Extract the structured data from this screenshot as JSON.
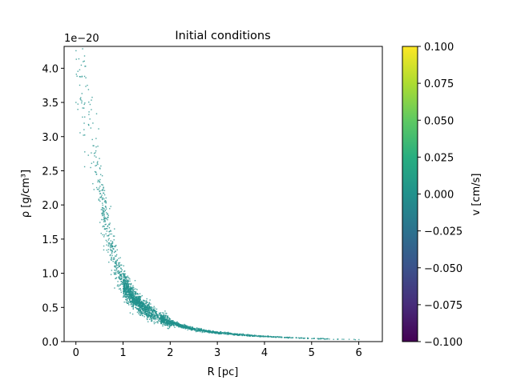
{
  "chart_data": {
    "type": "scatter",
    "title": "Initial conditions",
    "xlabel": "R  [pc]",
    "ylabel": "ρ [g/cm³]",
    "y_offset_label": "1e−20",
    "xlim": [
      -0.25,
      6.5
    ],
    "ylim": [
      0.0,
      4.32
    ],
    "y_scale_exponent": -20,
    "xticks": [
      0,
      1,
      2,
      3,
      4,
      5,
      6
    ],
    "xtick_labels": [
      "0",
      "1",
      "2",
      "3",
      "4",
      "5",
      "6"
    ],
    "yticks": [
      0.0,
      0.5,
      1.0,
      1.5,
      2.0,
      2.5,
      3.0,
      3.5,
      4.0
    ],
    "ytick_labels": [
      "0.0",
      "0.5",
      "1.0",
      "1.5",
      "2.0",
      "2.5",
      "3.0",
      "3.5",
      "4.0"
    ],
    "point_color": "#21918c",
    "series": [
      {
        "name": "particles",
        "description": "density decreasing with radius, ~0 velocity",
        "curve_samples": {
          "x": [
            0.02,
            0.2,
            0.35,
            0.5,
            0.65,
            0.8,
            1.0,
            1.2,
            1.4,
            1.6,
            1.8,
            2.0,
            2.5,
            3.0,
            3.5,
            4.0,
            4.5,
            5.0,
            5.5,
            6.0,
            6.2
          ],
          "y": [
            4.1,
            3.65,
            2.95,
            2.25,
            1.7,
            1.25,
            0.85,
            0.65,
            0.52,
            0.42,
            0.34,
            0.28,
            0.18,
            0.13,
            0.1,
            0.075,
            0.06,
            0.045,
            0.035,
            0.03,
            0.02
          ]
        }
      }
    ],
    "colorbar": {
      "label": "v [cm/s]",
      "vmin": -0.1,
      "vmax": 0.1,
      "ticks": [
        -0.1,
        -0.075,
        -0.05,
        -0.025,
        0.0,
        0.025,
        0.05,
        0.075,
        0.1
      ],
      "tick_labels": [
        "−0.100",
        "−0.075",
        "−0.050",
        "−0.025",
        "0.000",
        "0.025",
        "0.050",
        "0.075",
        "0.100"
      ],
      "colormap": "viridis",
      "colors": [
        "#440154",
        "#472c7a",
        "#3b528b",
        "#2c728e",
        "#21918c",
        "#28ae80",
        "#5ec962",
        "#addc30",
        "#fde725"
      ]
    }
  }
}
